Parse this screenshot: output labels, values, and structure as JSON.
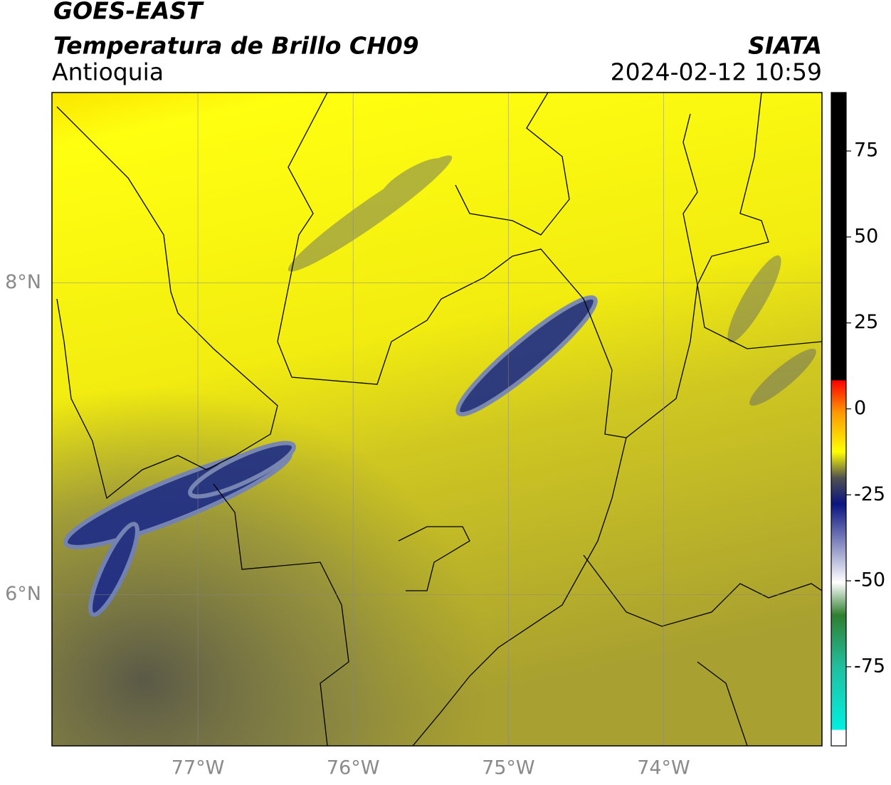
{
  "chart_data": {
    "type": "map",
    "title": "GOES-EAST",
    "subtitle": "Temperatura de Brillo CH09",
    "region": "Antioquia",
    "source": "SIATA",
    "timestamp": "2024-02-12 10:59",
    "xlim": [
      -77.94,
      -72.98
    ],
    "ylim": [
      5.03,
      9.22
    ],
    "xticks": [
      {
        "value": -77,
        "label": "77°W"
      },
      {
        "value": -76,
        "label": "76°W"
      },
      {
        "value": -75,
        "label": "75°W"
      },
      {
        "value": -74,
        "label": "74°W"
      }
    ],
    "yticks": [
      {
        "value": 6,
        "label": "6°N"
      },
      {
        "value": 8,
        "label": "8°N"
      }
    ],
    "grid": true,
    "colorbar": {
      "lim": [
        -98,
        92
      ],
      "ticks": [
        75,
        50,
        25,
        0,
        -25,
        -50,
        -75
      ]
    }
  }
}
